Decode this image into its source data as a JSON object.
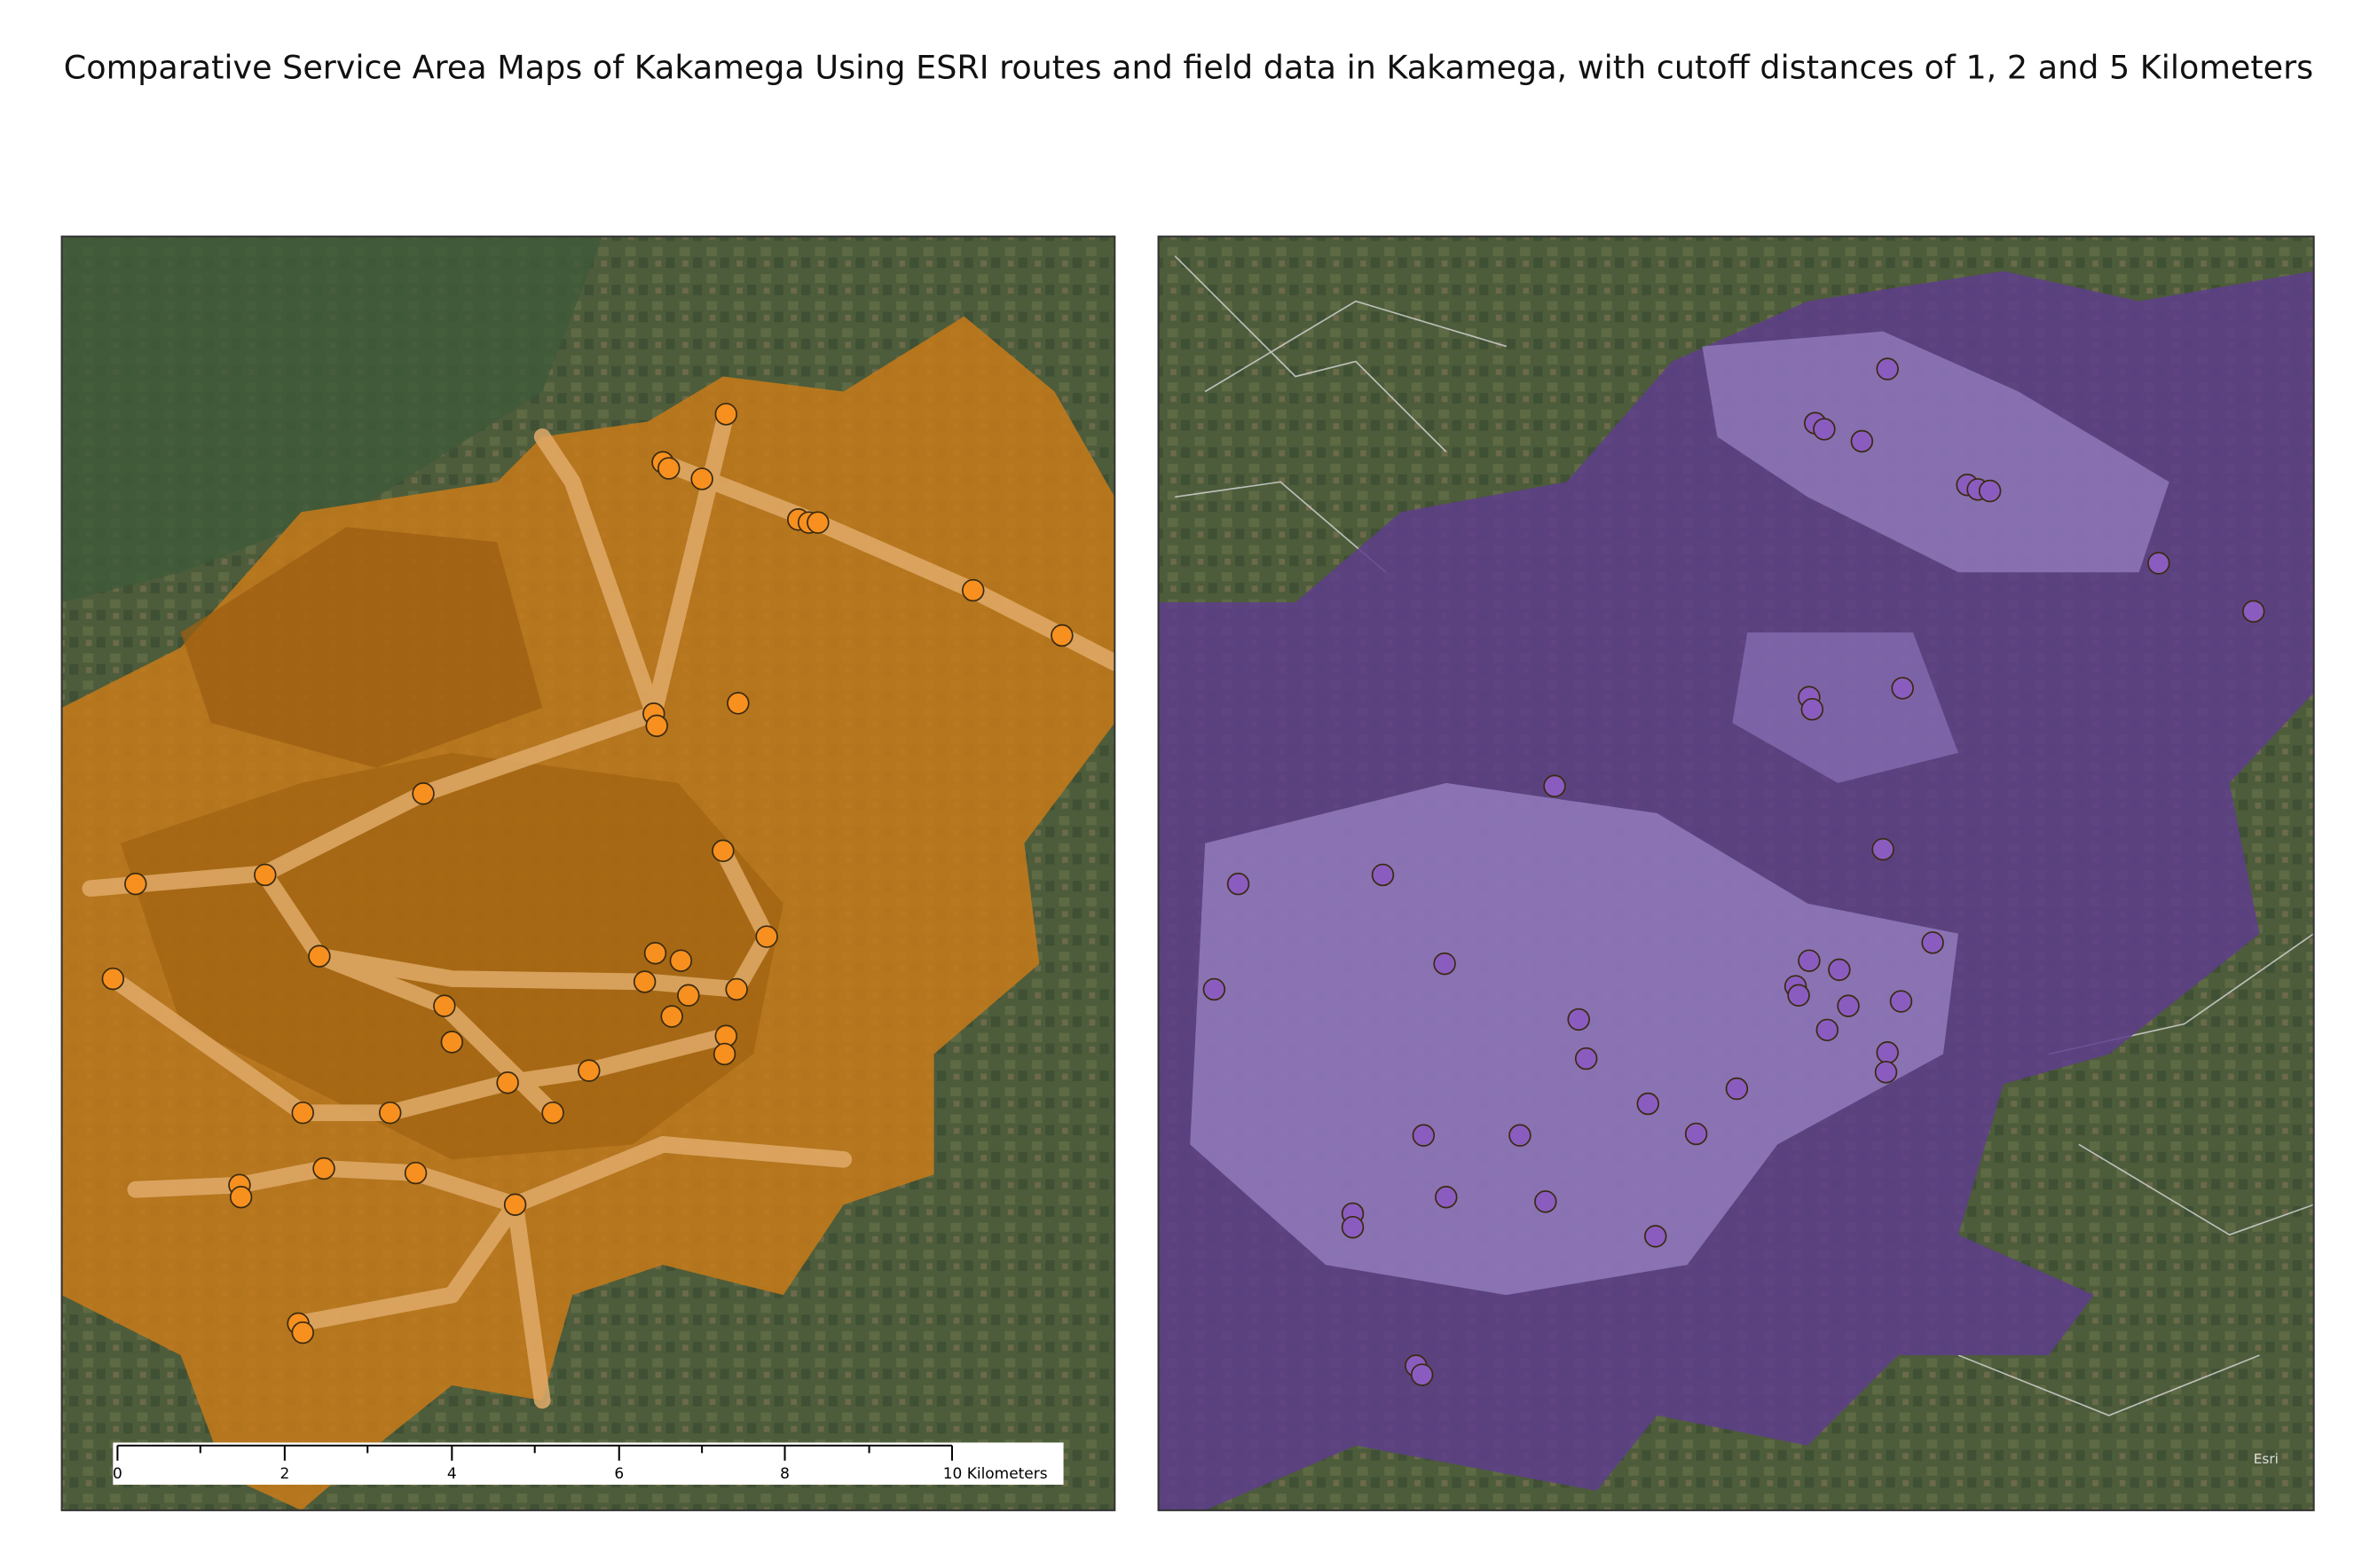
{
  "title": "Comparative Service Area Maps of Kakamega Using ESRI routes and field data in Kakamega, with cutoff distances of 1, 2 and 5 Kilometers",
  "scale_bar": {
    "labels": [
      "0",
      "2",
      "4",
      "6",
      "8",
      "10 Kilometers"
    ]
  },
  "attribution": "Esri"
}
